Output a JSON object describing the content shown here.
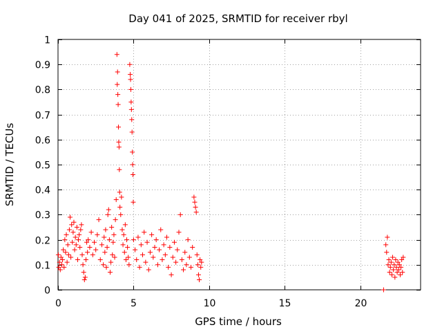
{
  "chart_data": {
    "type": "scatter",
    "title": "Day 041 of 2025, SRMTID for receiver rbyl",
    "xlabel": "GPS time / hours",
    "ylabel": "SRMTID / TECUs",
    "xlim": [
      0,
      24
    ],
    "ylim": [
      0,
      1
    ],
    "grid": true,
    "series_color": "#ff0000",
    "xticks": [
      0,
      5,
      10,
      15,
      20
    ],
    "xtick_labels": [
      "0",
      "5",
      "10",
      "15",
      "20"
    ],
    "yticks": [
      0,
      0.1,
      0.2,
      0.3,
      0.4,
      0.5,
      0.6,
      0.7,
      0.8,
      0.9,
      1
    ],
    "ytick_labels": [
      "0",
      "0.1",
      "0.2",
      "0.3",
      "0.4",
      "0.5",
      "0.6",
      "0.7",
      "0.8",
      "0.9",
      "1"
    ],
    "series": [
      {
        "name": "SRMTID",
        "marker": "+",
        "points": [
          [
            0.02,
            0.14
          ],
          [
            0.05,
            0.09
          ],
          [
            0.1,
            0.11
          ],
          [
            0.15,
            0.08
          ],
          [
            0.2,
            0.13
          ],
          [
            0.25,
            0.1
          ],
          [
            0.3,
            0.12
          ],
          [
            0.35,
            0.16
          ],
          [
            0.4,
            0.09
          ],
          [
            0.45,
            0.2
          ],
          [
            0.5,
            0.15
          ],
          [
            0.55,
            0.22
          ],
          [
            0.6,
            0.11
          ],
          [
            0.65,
            0.18
          ],
          [
            0.7,
            0.14
          ],
          [
            0.75,
            0.24
          ],
          [
            0.8,
            0.29
          ],
          [
            0.85,
            0.13
          ],
          [
            0.9,
            0.26
          ],
          [
            0.95,
            0.19
          ],
          [
            1.0,
            0.23
          ],
          [
            1.05,
            0.27
          ],
          [
            1.1,
            0.16
          ],
          [
            1.15,
            0.21
          ],
          [
            1.2,
            0.18
          ],
          [
            1.25,
            0.25
          ],
          [
            1.3,
            0.12
          ],
          [
            1.35,
            0.2
          ],
          [
            1.4,
            0.22
          ],
          [
            1.45,
            0.17
          ],
          [
            1.5,
            0.24
          ],
          [
            1.55,
            0.26
          ],
          [
            1.6,
            0.14
          ],
          [
            1.65,
            0.1
          ],
          [
            1.7,
            0.07
          ],
          [
            1.75,
            0.04
          ],
          [
            1.8,
            0.05
          ],
          [
            1.85,
            0.12
          ],
          [
            1.9,
            0.19
          ],
          [
            1.95,
            0.15
          ],
          [
            2.0,
            0.2
          ],
          [
            2.1,
            0.17
          ],
          [
            2.2,
            0.23
          ],
          [
            2.3,
            0.14
          ],
          [
            2.4,
            0.19
          ],
          [
            2.5,
            0.16
          ],
          [
            2.6,
            0.22
          ],
          [
            2.7,
            0.28
          ],
          [
            2.8,
            0.12
          ],
          [
            2.9,
            0.18
          ],
          [
            3.0,
            0.1
          ],
          [
            3.05,
            0.21
          ],
          [
            3.1,
            0.15
          ],
          [
            3.15,
            0.24
          ],
          [
            3.2,
            0.09
          ],
          [
            3.25,
            0.17
          ],
          [
            3.3,
            0.3
          ],
          [
            3.35,
            0.32
          ],
          [
            3.4,
            0.2
          ],
          [
            3.45,
            0.07
          ],
          [
            3.5,
            0.11
          ],
          [
            3.55,
            0.25
          ],
          [
            3.6,
            0.14
          ],
          [
            3.65,
            0.19
          ],
          [
            3.7,
            0.22
          ],
          [
            3.75,
            0.13
          ],
          [
            3.8,
            0.28
          ],
          [
            3.85,
            0.36
          ],
          [
            3.9,
            0.94
          ],
          [
            3.92,
            0.82
          ],
          [
            3.94,
            0.87
          ],
          [
            3.96,
            0.78
          ],
          [
            3.98,
            0.74
          ],
          [
            4.0,
            0.65
          ],
          [
            4.02,
            0.59
          ],
          [
            4.04,
            0.57
          ],
          [
            4.06,
            0.48
          ],
          [
            4.08,
            0.39
          ],
          [
            4.1,
            0.33
          ],
          [
            4.15,
            0.3
          ],
          [
            4.2,
            0.37
          ],
          [
            4.25,
            0.24
          ],
          [
            4.3,
            0.18
          ],
          [
            4.35,
            0.22
          ],
          [
            4.4,
            0.15
          ],
          [
            4.45,
            0.26
          ],
          [
            4.5,
            0.12
          ],
          [
            4.55,
            0.2
          ],
          [
            4.6,
            0.17
          ],
          [
            4.65,
            0.13
          ],
          [
            4.7,
            0.1
          ],
          [
            4.75,
            0.9
          ],
          [
            4.78,
            0.86
          ],
          [
            4.8,
            0.84
          ],
          [
            4.82,
            0.8
          ],
          [
            4.84,
            0.75
          ],
          [
            4.86,
            0.72
          ],
          [
            4.88,
            0.68
          ],
          [
            4.9,
            0.63
          ],
          [
            4.92,
            0.55
          ],
          [
            4.94,
            0.5
          ],
          [
            4.96,
            0.46
          ],
          [
            4.98,
            0.35
          ],
          [
            5.0,
            0.2
          ],
          [
            5.1,
            0.16
          ],
          [
            5.2,
            0.12
          ],
          [
            5.3,
            0.21
          ],
          [
            5.4,
            0.09
          ],
          [
            5.5,
            0.18
          ],
          [
            5.6,
            0.14
          ],
          [
            5.7,
            0.23
          ],
          [
            5.8,
            0.11
          ],
          [
            5.9,
            0.19
          ],
          [
            6.0,
            0.08
          ],
          [
            6.1,
            0.15
          ],
          [
            6.2,
            0.22
          ],
          [
            6.3,
            0.13
          ],
          [
            6.4,
            0.17
          ],
          [
            6.5,
            0.2
          ],
          [
            6.6,
            0.1
          ],
          [
            6.7,
            0.16
          ],
          [
            6.8,
            0.24
          ],
          [
            6.9,
            0.12
          ],
          [
            7.0,
            0.18
          ],
          [
            7.1,
            0.14
          ],
          [
            7.2,
            0.21
          ],
          [
            7.3,
            0.09
          ],
          [
            7.4,
            0.17
          ],
          [
            7.5,
            0.06
          ],
          [
            7.6,
            0.13
          ],
          [
            7.7,
            0.19
          ],
          [
            7.8,
            0.11
          ],
          [
            7.9,
            0.16
          ],
          [
            8.0,
            0.23
          ],
          [
            8.1,
            0.3
          ],
          [
            8.2,
            0.12
          ],
          [
            8.3,
            0.08
          ],
          [
            8.4,
            0.15
          ],
          [
            8.5,
            0.1
          ],
          [
            8.6,
            0.2
          ],
          [
            8.7,
            0.13
          ],
          [
            8.8,
            0.09
          ],
          [
            8.9,
            0.17
          ],
          [
            9.0,
            0.37
          ],
          [
            9.05,
            0.35
          ],
          [
            9.1,
            0.33
          ],
          [
            9.15,
            0.31
          ],
          [
            9.2,
            0.14
          ],
          [
            9.25,
            0.1
          ],
          [
            9.3,
            0.06
          ],
          [
            9.35,
            0.04
          ],
          [
            9.4,
            0.12
          ],
          [
            9.45,
            0.09
          ],
          [
            9.5,
            0.11
          ],
          [
            21.55,
            0.0
          ],
          [
            21.7,
            0.18
          ],
          [
            21.75,
            0.15
          ],
          [
            21.8,
            0.21
          ],
          [
            21.85,
            0.1
          ],
          [
            21.9,
            0.12
          ],
          [
            21.95,
            0.07
          ],
          [
            22.0,
            0.09
          ],
          [
            22.05,
            0.11
          ],
          [
            22.1,
            0.06
          ],
          [
            22.15,
            0.13
          ],
          [
            22.2,
            0.08
          ],
          [
            22.25,
            0.1
          ],
          [
            22.3,
            0.05
          ],
          [
            22.35,
            0.12
          ],
          [
            22.4,
            0.09
          ],
          [
            22.45,
            0.07
          ],
          [
            22.5,
            0.11
          ],
          [
            22.55,
            0.08
          ],
          [
            22.6,
            0.1
          ],
          [
            22.65,
            0.06
          ],
          [
            22.7,
            0.09
          ],
          [
            22.75,
            0.12
          ],
          [
            22.8,
            0.07
          ],
          [
            22.85,
            0.13
          ]
        ]
      }
    ]
  }
}
